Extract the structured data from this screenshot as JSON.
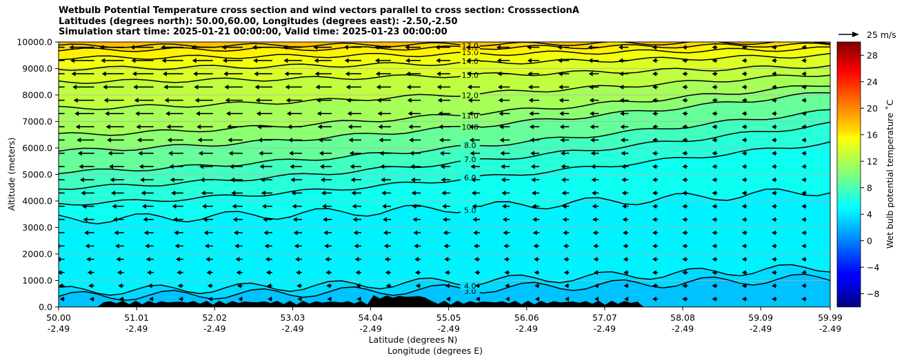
{
  "title_lines": [
    "Wetbulb Potential Temperature cross section and wind vectors parallel to cross section: CrosssectionA",
    "Latitudes (degrees north): 50.00,60.00, Longitudes (degrees east): -2.50,-2.50",
    "Simulation start time: 2025-01-21 00:00:00, Valid time: 2025-01-23 00:00:00"
  ],
  "chart_data": {
    "type": "heatmap",
    "subtype": "filled contour cross-section with wind vectors",
    "x_tick_labels": [
      [
        "50.00",
        "-2.49"
      ],
      [
        "51.01",
        "-2.49"
      ],
      [
        "52.02",
        "-2.49"
      ],
      [
        "53.03",
        "-2.49"
      ],
      [
        "54.04",
        "-2.49"
      ],
      [
        "55.05",
        "-2.49"
      ],
      [
        "56.06",
        "-2.49"
      ],
      [
        "57.07",
        "-2.49"
      ],
      [
        "58.08",
        "-2.49"
      ],
      [
        "59.09",
        "-2.49"
      ],
      [
        "59.99",
        "-2.49"
      ]
    ],
    "x_tick_values": [
      50.0,
      51.01,
      52.02,
      53.03,
      54.04,
      55.05,
      56.06,
      57.07,
      58.08,
      59.09,
      59.99
    ],
    "xlim": [
      50.0,
      59.99
    ],
    "xlabel_lines": [
      "Latitude (degrees N)",
      "Longitude (degrees E)"
    ],
    "ylabel": "Altitude (meters)",
    "y_ticks": [
      "0.0",
      "1000.0",
      "2000.0",
      "3000.0",
      "4000.0",
      "5000.0",
      "6000.0",
      "7000.0",
      "8000.0",
      "9000.0",
      "10000.0"
    ],
    "y_tick_values": [
      0,
      1000,
      2000,
      3000,
      4000,
      5000,
      6000,
      7000,
      8000,
      9000,
      10000
    ],
    "ylim": [
      0,
      10000
    ],
    "grid": "horizontal",
    "colormap": "jet",
    "colorbar": {
      "label": "Wet bulb potential temperature $^\\circ$C",
      "label_display": "Wet bulb potential temperature ˚C",
      "range": [
        -10,
        30
      ],
      "ticks": [
        "-8",
        "-4",
        "0",
        "4",
        "8",
        "12",
        "16",
        "20",
        "24",
        "28"
      ],
      "tick_values": [
        -8,
        -4,
        0,
        4,
        8,
        12,
        16,
        20,
        24,
        28
      ]
    },
    "quiver_key": {
      "label": "25 m/s",
      "value": 25
    },
    "contours": [
      {
        "level": 3.0,
        "label": "3.0",
        "altitude_left": 400,
        "altitude_right": 1100
      },
      {
        "level": 4.0,
        "label": "4.0",
        "altitude_left": 600,
        "altitude_right": 1500
      },
      {
        "level": 5.0,
        "label": "5.0",
        "altitude_left": 3300,
        "altitude_right": 4400
      },
      {
        "level": 6.0,
        "label": "6.0",
        "altitude_left": 3900,
        "altitude_right": 6200
      },
      {
        "level": 7.0,
        "label": "7.0",
        "altitude_left": 4500,
        "altitude_right": 6900
      },
      {
        "level": 8.0,
        "label": "8.0",
        "altitude_left": 5100,
        "altitude_right": 7400
      },
      {
        "level": 10.0,
        "label": "10.0",
        "altitude_left": 5900,
        "altitude_right": 8100
      },
      {
        "level": 11.0,
        "label": "11.0",
        "altitude_left": 6500,
        "altitude_right": 8400
      },
      {
        "level": 12.0,
        "label": "12.0",
        "altitude_left": 7500,
        "altitude_right": 8800
      },
      {
        "level": 13.0,
        "label": "13.0",
        "altitude_left": 8500,
        "altitude_right": 9100
      },
      {
        "level": 14.0,
        "label": "14.0",
        "altitude_left": 9000,
        "altitude_right": 9500
      },
      {
        "level": 15.0,
        "label": "15.0",
        "altitude_left": 9400,
        "altitude_right": 9750
      },
      {
        "level": 16.0,
        "label": "16.0",
        "altitude_left": 9700,
        "altitude_right": 9900
      },
      {
        "level": 17.0,
        "label": "17.0",
        "altitude_left": 9850,
        "altitude_right": 10000
      }
    ],
    "theta_w_left_surface": 4,
    "theta_w_left_top": 17,
    "wind": "predominantly from east (arrows pointing left), stronger aloft and to the south, weak north of 57N"
  }
}
